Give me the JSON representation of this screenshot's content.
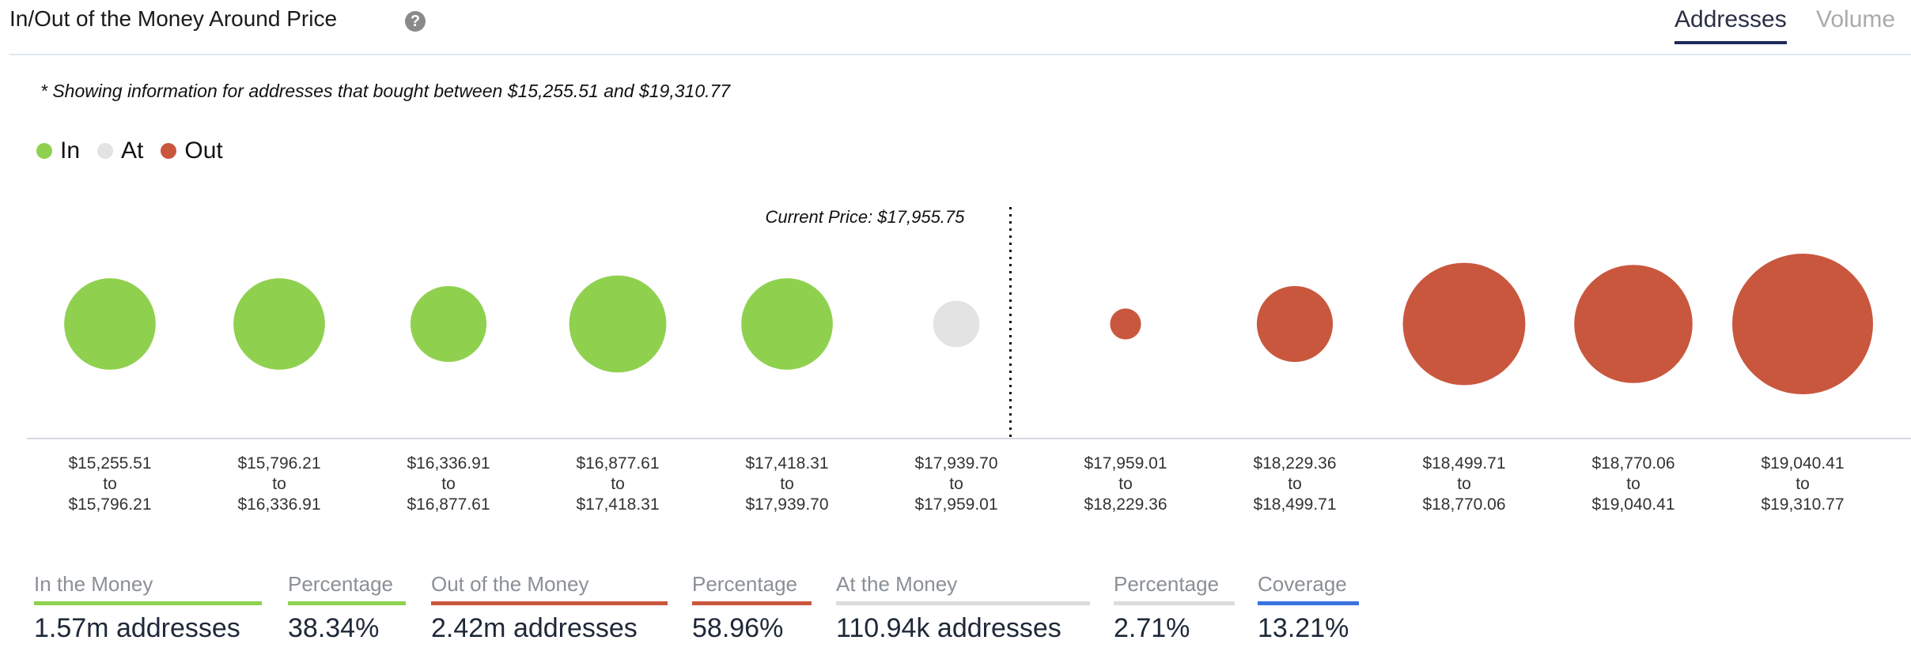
{
  "header": {
    "title": "In/Out of the Money Around Price",
    "help_icon": "question-circle-icon"
  },
  "tabs": [
    {
      "label": "Addresses",
      "active": true
    },
    {
      "label": "Volume",
      "active": false
    }
  ],
  "note": "* Showing information for addresses that bought between $15,255.51 and $19,310.77",
  "colors": {
    "in": "#8fd14f",
    "at": "#e3e3e3",
    "out": "#c9573e",
    "coverage": "#3a73e0"
  },
  "chart_data": {
    "type": "bubble",
    "legend": [
      {
        "name": "In",
        "key": "in"
      },
      {
        "name": "At",
        "key": "at"
      },
      {
        "name": "Out",
        "key": "out"
      }
    ],
    "legend_placement": "top-left",
    "current_price_label": "Current Price: $17,955.75",
    "current_price_after_index": 5,
    "bins": [
      {
        "from": "$15,255.51",
        "to": "$15,796.21",
        "status": "in",
        "relative_size": 0.65
      },
      {
        "from": "$15,796.21",
        "to": "$16,336.91",
        "status": "in",
        "relative_size": 0.65
      },
      {
        "from": "$16,336.91",
        "to": "$16,877.61",
        "status": "in",
        "relative_size": 0.54
      },
      {
        "from": "$16,877.61",
        "to": "$17,418.31",
        "status": "in",
        "relative_size": 0.69
      },
      {
        "from": "$17,418.31",
        "to": "$17,939.70",
        "status": "in",
        "relative_size": 0.65
      },
      {
        "from": "$17,939.70",
        "to": "$17,959.01",
        "status": "at",
        "relative_size": 0.33
      },
      {
        "from": "$17,959.01",
        "to": "$18,229.36",
        "status": "out",
        "relative_size": 0.22
      },
      {
        "from": "$18,229.36",
        "to": "$18,499.71",
        "status": "out",
        "relative_size": 0.54
      },
      {
        "from": "$18,499.71",
        "to": "$18,770.06",
        "status": "out",
        "relative_size": 0.87
      },
      {
        "from": "$18,770.06",
        "to": "$19,040.41",
        "status": "out",
        "relative_size": 0.84
      },
      {
        "from": "$19,040.41",
        "to": "$19,310.77",
        "status": "out",
        "relative_size": 1.0
      }
    ],
    "to_word": "to"
  },
  "summary": [
    {
      "label": "In the Money",
      "value": "1.57m addresses",
      "color": "#8fd14f"
    },
    {
      "label": "Percentage",
      "value": "38.34%",
      "color": "#8fd14f"
    },
    {
      "label": "Out of the Money",
      "value": "2.42m addresses",
      "color": "#c9573e"
    },
    {
      "label": "Percentage",
      "value": "58.96%",
      "color": "#c9573e"
    },
    {
      "label": "At the Money",
      "value": "110.94k addresses",
      "color": "#dcdcdc"
    },
    {
      "label": "Percentage",
      "value": "2.71%",
      "color": "#dcdcdc"
    },
    {
      "label": "Coverage",
      "value": "13.21%",
      "color": "#3a73e0"
    }
  ]
}
